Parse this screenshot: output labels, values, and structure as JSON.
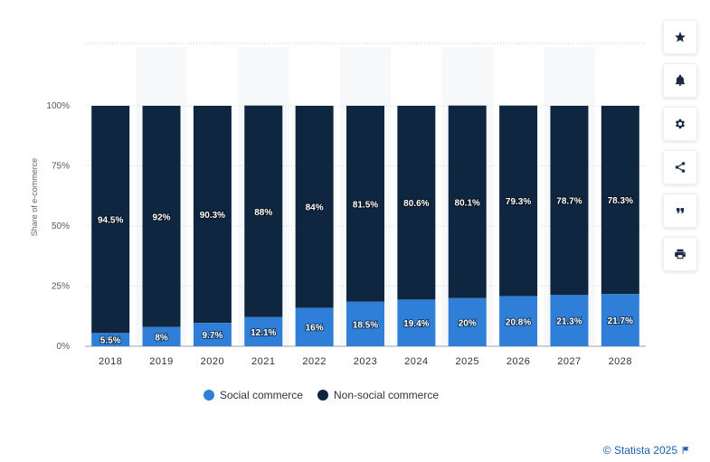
{
  "chart_data": {
    "type": "bar",
    "stacked": true,
    "categories": [
      "2018",
      "2019",
      "2020",
      "2021",
      "2022",
      "2023",
      "2024",
      "2025",
      "2026",
      "2027",
      "2028"
    ],
    "series": [
      {
        "name": "Social commerce",
        "color": "#2f7ed8",
        "values": [
          5.5,
          8,
          9.7,
          12.1,
          16,
          18.5,
          19.4,
          20,
          20.8,
          21.3,
          21.7
        ],
        "labels": [
          "5.5%",
          "8%",
          "9.7%",
          "12.1%",
          "16%",
          "18.5%",
          "19.4%",
          "20%",
          "20.8%",
          "21.3%",
          "21.7%"
        ]
      },
      {
        "name": "Non-social commerce",
        "color": "#0f2640",
        "values": [
          94.5,
          92,
          90.3,
          88,
          84,
          81.5,
          80.6,
          80.1,
          79.3,
          78.7,
          78.3
        ],
        "labels": [
          "94.5%",
          "92%",
          "90.3%",
          "88%",
          "84%",
          "81.5%",
          "80.6%",
          "80.1%",
          "79.3%",
          "78.7%",
          "78.3%"
        ]
      }
    ],
    "ylabel": "Share of e-commerce",
    "ylim": [
      0,
      100
    ],
    "yticks": [
      0,
      25,
      50,
      75,
      100
    ],
    "ytick_labels": [
      "0%",
      "25%",
      "50%",
      "75%",
      "100%"
    ],
    "grid": true,
    "legend_position": "bottom"
  },
  "toolbar": {
    "buttons": [
      {
        "name": "favorite-button",
        "icon": "star-icon"
      },
      {
        "name": "notification-button",
        "icon": "bell-icon"
      },
      {
        "name": "settings-button",
        "icon": "gear-icon"
      },
      {
        "name": "share-button",
        "icon": "share-icon"
      },
      {
        "name": "cite-button",
        "icon": "quote-icon"
      },
      {
        "name": "print-button",
        "icon": "print-icon"
      }
    ]
  },
  "legend": {
    "social_label": "Social commerce",
    "nonsocial_label": "Non-social commerce"
  },
  "credit": {
    "text": "© Statista 2025"
  }
}
